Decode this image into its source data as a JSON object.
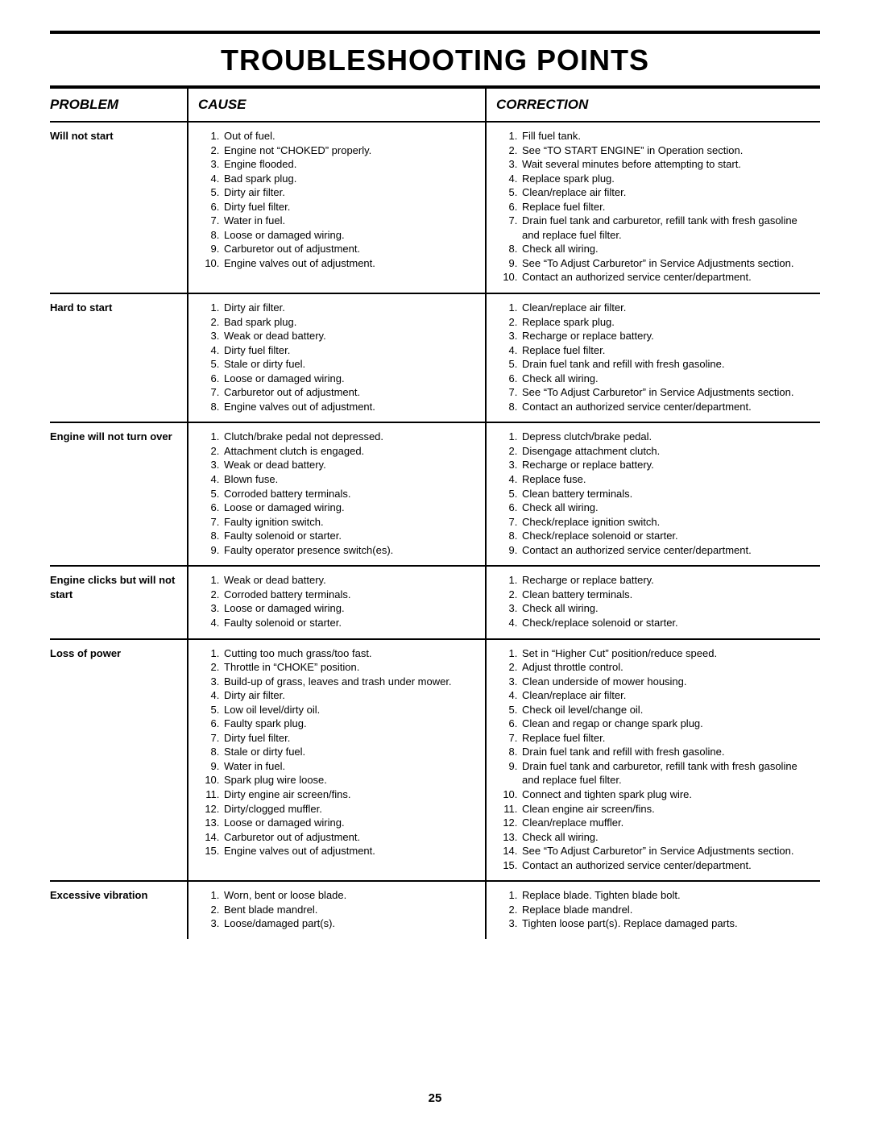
{
  "page_title": "TROUBLESHOOTING POINTS",
  "page_number": "25",
  "columns": {
    "problem_label": "PROBLEM",
    "cause_label": "CAUSE",
    "correction_label": "CORRECTION"
  },
  "rows": [
    {
      "problem": "Will not start",
      "causes": [
        "Out of fuel.",
        "Engine not “CHOKED” properly.",
        "Engine flooded.",
        "Bad spark plug.",
        "Dirty air filter.",
        "Dirty fuel filter.",
        "Water in fuel.",
        "Loose or damaged wiring.",
        "Carburetor out of adjustment.",
        "Engine valves out of adjustment."
      ],
      "corrections": [
        "Fill fuel tank.",
        "See “TO START ENGINE” in Operation section.",
        "Wait several minutes before attempting to start.",
        "Replace spark plug.",
        "Clean/replace air filter.",
        "Replace fuel filter.",
        "Drain fuel tank and carburetor, refill tank with fresh gasoline and replace fuel filter.",
        "Check all wiring.",
        "See “To Adjust Carburetor” in Service Adjustments section.",
        "Contact an authorized service center/department."
      ]
    },
    {
      "problem": "Hard to start",
      "causes": [
        "Dirty air filter.",
        "Bad spark plug.",
        "Weak or dead battery.",
        "Dirty fuel filter.",
        "Stale or dirty fuel.",
        "Loose or damaged wiring.",
        "Carburetor out of adjustment.",
        "Engine valves out of adjustment."
      ],
      "corrections": [
        "Clean/replace air filter.",
        "Replace spark plug.",
        "Recharge or replace battery.",
        "Replace fuel filter.",
        "Drain fuel tank and refill with fresh gasoline.",
        "Check all wiring.",
        "See “To Adjust Carburetor” in Service Adjustments section.",
        "Contact an authorized service center/department."
      ]
    },
    {
      "problem": "Engine will not turn over",
      "causes": [
        "Clutch/brake pedal not depressed.",
        "Attachment clutch is engaged.",
        "Weak or dead battery.",
        "Blown fuse.",
        "Corroded battery terminals.",
        "Loose or damaged wiring.",
        "Faulty ignition switch.",
        "Faulty solenoid or starter.",
        "Faulty operator presence switch(es)."
      ],
      "corrections": [
        "Depress clutch/brake pedal.",
        "Disengage attachment clutch.",
        "Recharge or replace battery.",
        "Replace fuse.",
        "Clean battery terminals.",
        "Check all wiring.",
        "Check/replace ignition switch.",
        "Check/replace solenoid or starter.",
        "Contact an authorized service center/department."
      ]
    },
    {
      "problem": "Engine clicks but will not start",
      "causes": [
        "Weak or dead battery.",
        "Corroded battery terminals.",
        "Loose or damaged wiring.",
        "Faulty solenoid or starter."
      ],
      "corrections": [
        "Recharge or replace battery.",
        "Clean battery terminals.",
        "Check all wiring.",
        "Check/replace solenoid or starter."
      ]
    },
    {
      "problem": "Loss of power",
      "causes": [
        "Cutting too much grass/too fast.",
        "Throttle in “CHOKE” position.",
        "Build-up of grass, leaves and trash under mower.",
        "Dirty air filter.",
        "Low oil level/dirty oil.",
        "Faulty spark plug.",
        "Dirty fuel filter.",
        "Stale or dirty fuel.",
        "Water in fuel.",
        "Spark plug wire loose.",
        "Dirty engine air screen/fins.",
        "Dirty/clogged muffler.",
        "Loose or damaged wiring.",
        "Carburetor out of adjustment.",
        "Engine valves out of adjustment."
      ],
      "corrections": [
        "Set in “Higher Cut” position/reduce speed.",
        "Adjust throttle control.",
        "Clean underside of mower housing.",
        "Clean/replace air filter.",
        "Check oil level/change oil.",
        "Clean and regap or change spark plug.",
        "Replace fuel filter.",
        "Drain fuel tank and refill with fresh gasoline.",
        "Drain fuel tank and carburetor, refill tank with fresh gasoline and replace fuel filter.",
        "Connect and tighten spark plug wire.",
        "Clean engine air screen/fins.",
        "Clean/replace muffler.",
        "Check all wiring.",
        "See “To Adjust Carburetor” in Service Adjustments section.",
        "Contact an authorized service center/department."
      ]
    },
    {
      "problem": "Excessive vibration",
      "causes": [
        "Worn, bent or loose blade.",
        "Bent blade mandrel.",
        "Loose/damaged part(s)."
      ],
      "corrections": [
        "Replace blade.  Tighten blade bolt.",
        "Replace blade mandrel.",
        "Tighten loose part(s).  Replace damaged parts."
      ]
    }
  ]
}
